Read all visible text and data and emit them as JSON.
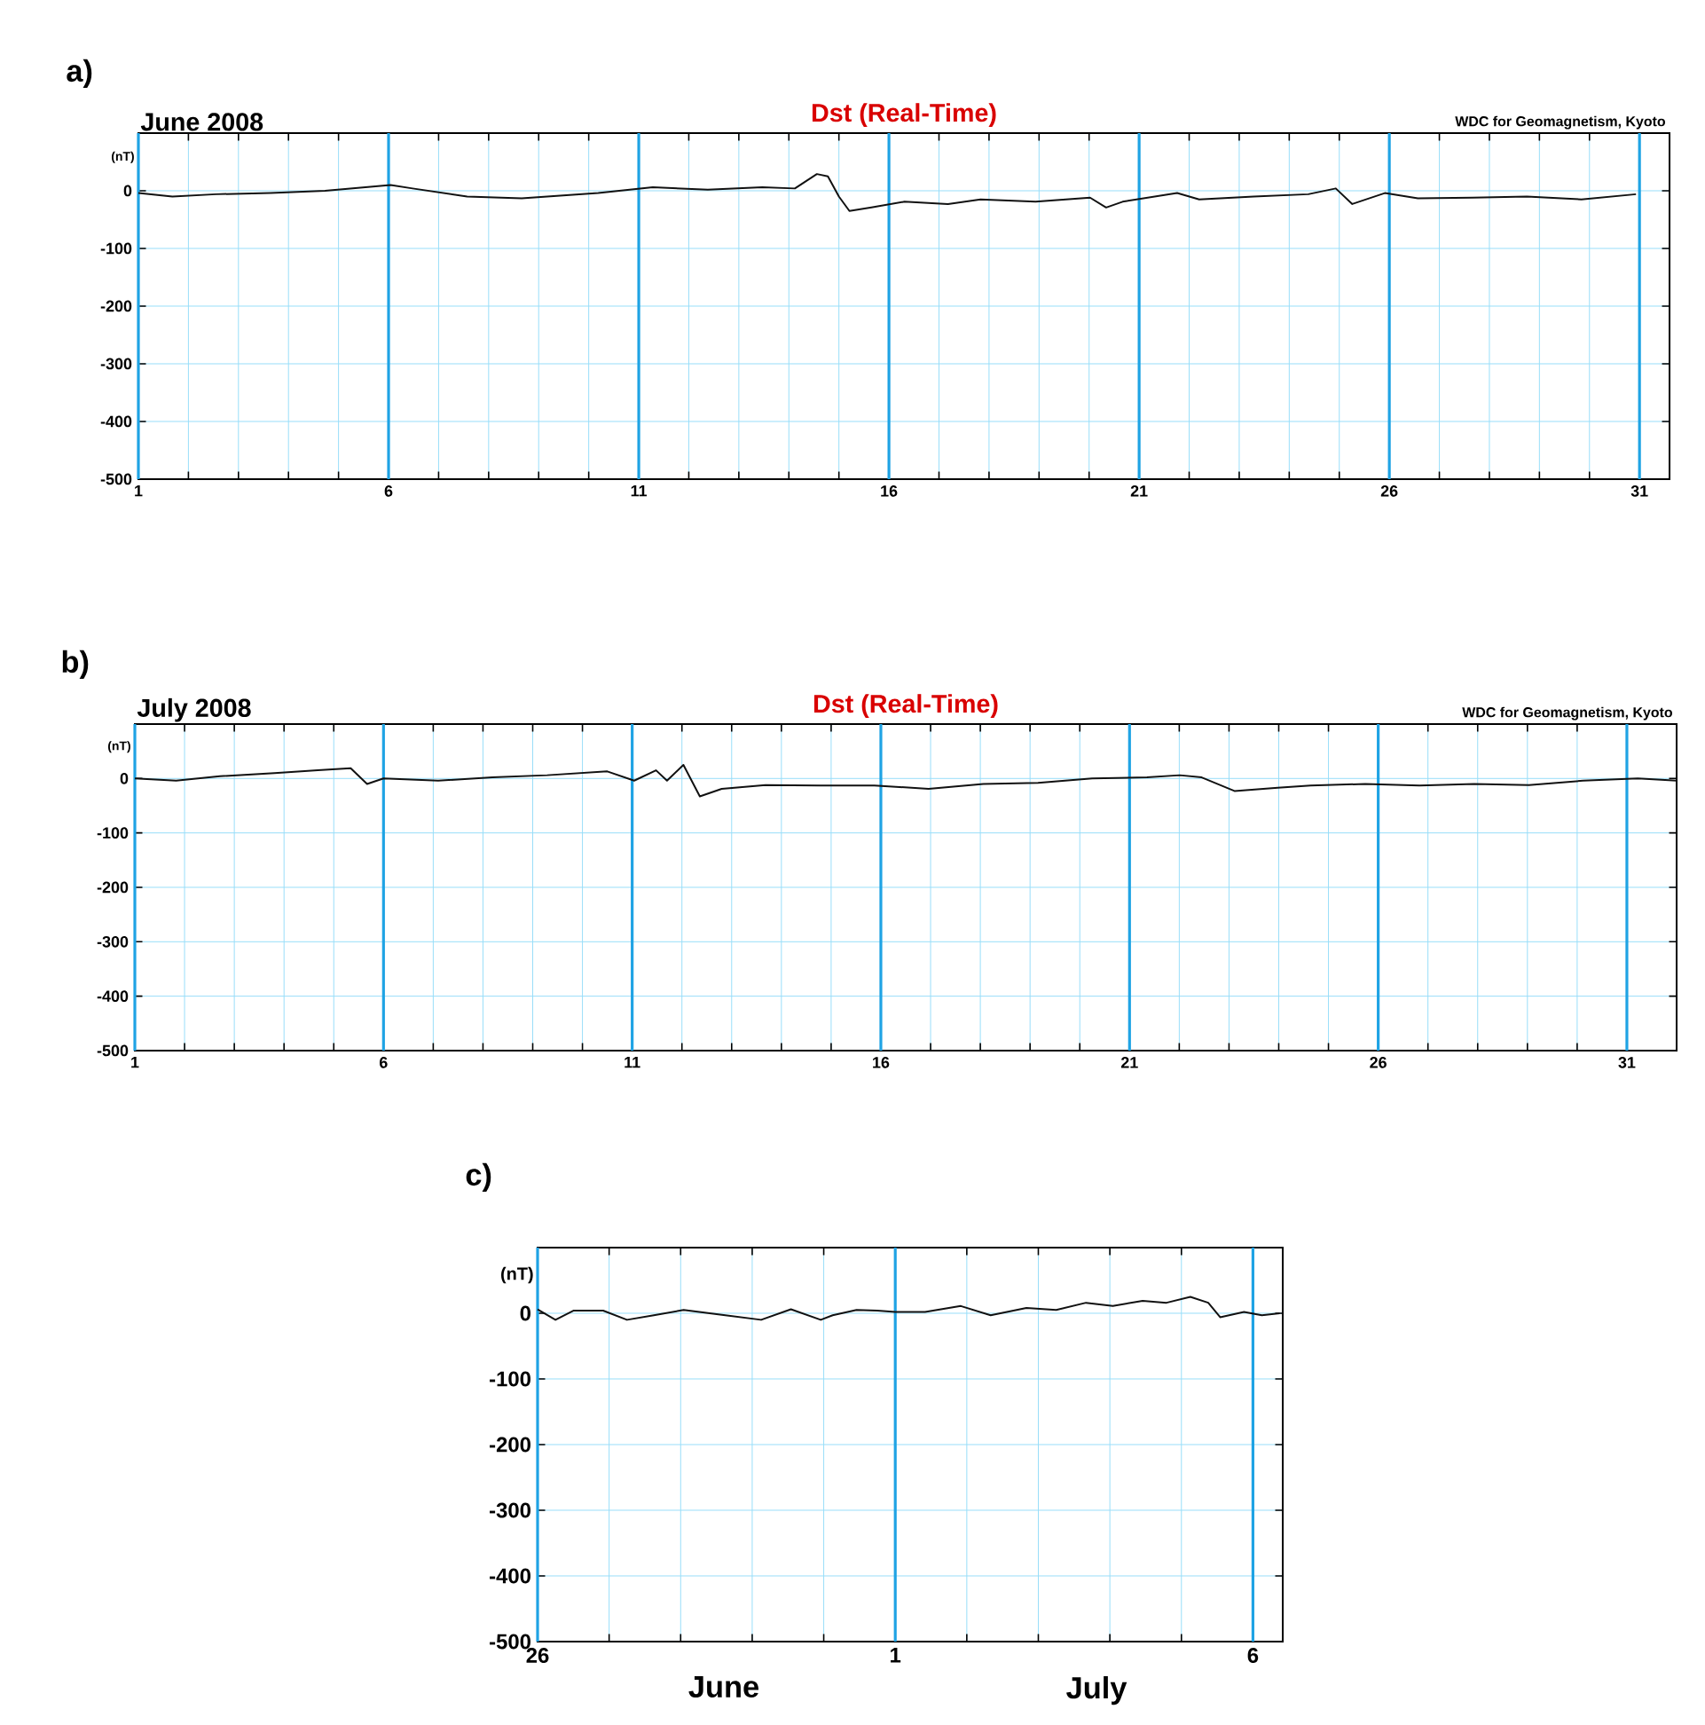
{
  "chart_data": [
    {
      "type": "line",
      "title": "Dst (Real-Time)",
      "subtitle": "June  2008",
      "ylabel": "(nT)",
      "annotations": [
        "a)",
        "WDC for Geomagnetism, Kyoto"
      ],
      "grid": true,
      "xlim": [
        1,
        31.6
      ],
      "ylim": [
        -500,
        100
      ],
      "xticks": [
        1,
        {
          "value": 2,
          "label": null
        },
        {
          "value": 3,
          "label": null
        },
        {
          "value": 4,
          "label": null
        },
        {
          "value": 5,
          "label": null
        },
        6,
        {
          "value": 7,
          "label": null
        },
        {
          "value": 8,
          "label": null
        },
        {
          "value": 9,
          "label": null
        },
        {
          "value": 10,
          "label": null
        },
        11,
        {
          "value": 12,
          "label": null
        },
        {
          "value": 13,
          "label": null
        },
        {
          "value": 14,
          "label": null
        },
        {
          "value": 15,
          "label": null
        },
        16,
        {
          "value": 17,
          "label": null
        },
        {
          "value": 18,
          "label": null
        },
        {
          "value": 19,
          "label": null
        },
        {
          "value": 20,
          "label": null
        },
        21,
        {
          "value": 22,
          "label": null
        },
        {
          "value": 23,
          "label": null
        },
        {
          "value": 24,
          "label": null
        },
        {
          "value": 25,
          "label": null
        },
        26,
        {
          "value": 27,
          "label": null
        },
        {
          "value": 28,
          "label": null
        },
        {
          "value": 29,
          "label": null
        },
        {
          "value": 30,
          "label": null
        },
        31
      ],
      "yticks": [
        -500,
        -400,
        -300,
        -200,
        -100,
        0
      ],
      "series": [
        {
          "color": "#111111",
          "x": [
            1.0,
            1.68,
            2.55,
            3.64,
            4.73,
            6.04,
            6.48,
            7.57,
            8.66,
            10.19,
            11.28,
            12.38,
            13.47,
            14.12,
            14.56,
            14.78,
            15.0,
            15.21,
            15.65,
            16.31,
            17.18,
            17.83,
            18.93,
            20.02,
            20.34,
            20.67,
            21.76,
            22.2,
            23.29,
            24.38,
            24.93,
            25.26,
            25.91,
            26.57,
            27.66,
            28.75,
            29.84,
            30.93
          ],
          "values": [
            -4,
            -10,
            -6,
            -4,
            0,
            10,
            4,
            -10,
            -13,
            -4,
            6,
            2,
            6,
            4,
            29,
            25,
            -10,
            -35,
            -29,
            -19,
            -23,
            -15,
            -19,
            -12,
            -29,
            -19,
            -4,
            -15,
            -10,
            -6,
            4,
            -23,
            -4,
            -13,
            -12,
            -10,
            -15,
            -6
          ]
        }
      ]
    },
    {
      "type": "line",
      "title": "Dst (Real-Time)",
      "subtitle": "July  2008",
      "ylabel": "(nT)",
      "annotations": [
        "b)",
        "WDC for Geomagnetism, Kyoto"
      ],
      "grid": true,
      "xlim": [
        1,
        32
      ],
      "ylim": [
        -500,
        100
      ],
      "xticks": [
        1,
        {
          "value": 2,
          "label": null
        },
        {
          "value": 3,
          "label": null
        },
        {
          "value": 4,
          "label": null
        },
        {
          "value": 5,
          "label": null
        },
        6,
        {
          "value": 7,
          "label": null
        },
        {
          "value": 8,
          "label": null
        },
        {
          "value": 9,
          "label": null
        },
        {
          "value": 10,
          "label": null
        },
        11,
        {
          "value": 12,
          "label": null
        },
        {
          "value": 13,
          "label": null
        },
        {
          "value": 14,
          "label": null
        },
        {
          "value": 15,
          "label": null
        },
        16,
        {
          "value": 17,
          "label": null
        },
        {
          "value": 18,
          "label": null
        },
        {
          "value": 19,
          "label": null
        },
        {
          "value": 20,
          "label": null
        },
        21,
        {
          "value": 22,
          "label": null
        },
        {
          "value": 23,
          "label": null
        },
        {
          "value": 24,
          "label": null
        },
        {
          "value": 25,
          "label": null
        },
        26,
        {
          "value": 27,
          "label": null
        },
        {
          "value": 28,
          "label": null
        },
        {
          "value": 29,
          "label": null
        },
        {
          "value": 30,
          "label": null
        },
        31
      ],
      "yticks": [
        -500,
        -400,
        -300,
        -200,
        -100,
        0
      ],
      "series": [
        {
          "color": "#111111",
          "x": [
            1.0,
            1.83,
            2.71,
            3.81,
            4.68,
            5.34,
            5.67,
            6.0,
            7.1,
            8.19,
            9.29,
            10.5,
            11.04,
            11.48,
            11.7,
            12.03,
            12.36,
            12.8,
            13.68,
            14.77,
            15.87,
            16.96,
            18.06,
            19.16,
            20.25,
            21.35,
            22.01,
            22.45,
            23.11,
            23.98,
            24.64,
            25.74,
            26.83,
            27.93,
            29.03,
            30.12,
            31.22,
            32.0
          ],
          "values": [
            0,
            -4,
            4,
            10,
            15,
            19,
            -10,
            0,
            -4,
            2,
            6,
            13,
            -4,
            15,
            -4,
            25,
            -33,
            -19,
            -12,
            -13,
            -13,
            -19,
            -10,
            -8,
            0,
            2,
            6,
            2,
            -23,
            -17,
            -13,
            -10,
            -13,
            -10,
            -12,
            -4,
            0,
            -4
          ]
        }
      ]
    },
    {
      "type": "line",
      "ylabel": "(nT)",
      "annotations": [
        "c)",
        "June",
        "July"
      ],
      "grid": true,
      "xlim": [
        "2008-06-26",
        "2008-07-06T10:00"
      ],
      "ylim": [
        -500,
        100
      ],
      "xticks": [
        {
          "value": "2008-06-26",
          "label": "26"
        },
        {
          "value": "2008-06-27",
          "label": null
        },
        {
          "value": "2008-06-28",
          "label": null
        },
        {
          "value": "2008-06-29",
          "label": null
        },
        {
          "value": "2008-06-30",
          "label": null
        },
        {
          "value": "2008-07-01",
          "label": "1"
        },
        {
          "value": "2008-07-02",
          "label": null
        },
        {
          "value": "2008-07-03",
          "label": null
        },
        {
          "value": "2008-07-04",
          "label": null
        },
        {
          "value": "2008-07-05",
          "label": null
        },
        {
          "value": "2008-07-06",
          "label": "6"
        }
      ],
      "yticks": [
        -500,
        -400,
        -300,
        -200,
        -100,
        0
      ],
      "series": [
        {
          "color": "#111111",
          "x": [
            "2008-06-26T00:00",
            "2008-06-26T06:00",
            "2008-06-26T12:00",
            "2008-06-26T22:00",
            "2008-06-27T06:00",
            "2008-06-27T15:00",
            "2008-06-28T01:00",
            "2008-06-28T15:00",
            "2008-06-29T03:00",
            "2008-06-29T13:00",
            "2008-06-29T23:00",
            "2008-06-30T03:00",
            "2008-06-30T11:00",
            "2008-06-30T18:00",
            "2008-07-01T00:00",
            "2008-07-01T10:00",
            "2008-07-01T22:00",
            "2008-07-02T08:00",
            "2008-07-02T20:00",
            "2008-07-03T06:00",
            "2008-07-03T16:00",
            "2008-07-04T01:00",
            "2008-07-04T11:00",
            "2008-07-04T19:00",
            "2008-07-05T03:00",
            "2008-07-05T09:00",
            "2008-07-05T13:00",
            "2008-07-05T21:00",
            "2008-07-06T03:00",
            "2008-07-06T09:00"
          ],
          "values": [
            6,
            -10,
            4,
            4,
            -10,
            -3,
            5,
            -3,
            -10,
            6,
            -10,
            -3,
            5,
            4,
            2,
            2,
            11,
            -3,
            8,
            5,
            16,
            11,
            19,
            16,
            25,
            16,
            -6,
            2,
            -3,
            0
          ]
        }
      ]
    }
  ]
}
